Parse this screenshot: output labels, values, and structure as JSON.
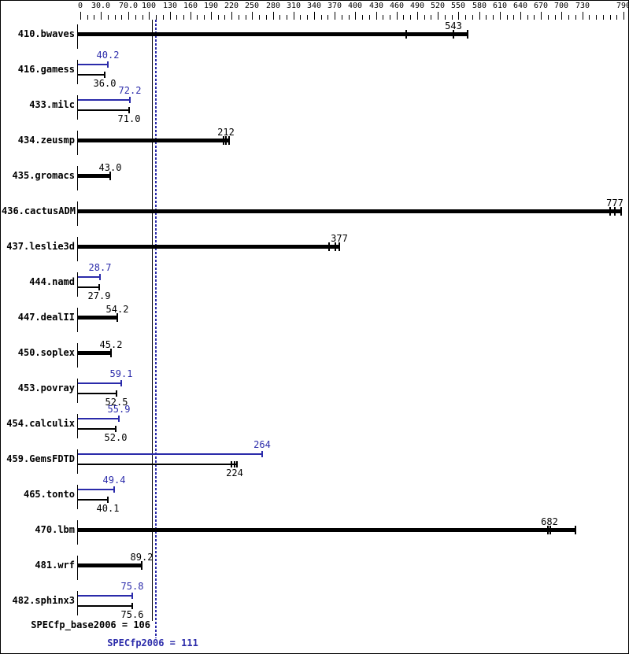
{
  "chart_data": {
    "type": "bar",
    "orientation": "horizontal",
    "axis": {
      "min": 0,
      "max": 790,
      "minor_tick_step": 10,
      "tick_labels": [
        {
          "value": 0,
          "text": "0"
        },
        {
          "value": 30,
          "text": "30.0"
        },
        {
          "value": 70,
          "text": "70.0"
        },
        {
          "value": 100,
          "text": "100"
        },
        {
          "value": 130,
          "text": "130"
        },
        {
          "value": 160,
          "text": "160"
        },
        {
          "value": 190,
          "text": "190"
        },
        {
          "value": 220,
          "text": "220"
        },
        {
          "value": 250,
          "text": "250"
        },
        {
          "value": 280,
          "text": "280"
        },
        {
          "value": 310,
          "text": "310"
        },
        {
          "value": 340,
          "text": "340"
        },
        {
          "value": 370,
          "text": "370"
        },
        {
          "value": 400,
          "text": "400"
        },
        {
          "value": 430,
          "text": "430"
        },
        {
          "value": 460,
          "text": "460"
        },
        {
          "value": 490,
          "text": "490"
        },
        {
          "value": 520,
          "text": "520"
        },
        {
          "value": 550,
          "text": "550"
        },
        {
          "value": 580,
          "text": "580"
        },
        {
          "value": 610,
          "text": "610"
        },
        {
          "value": 640,
          "text": "640"
        },
        {
          "value": 670,
          "text": "670"
        },
        {
          "value": 700,
          "text": "700"
        },
        {
          "value": 730,
          "text": "730"
        },
        {
          "value": 790,
          "text": "790"
        }
      ]
    },
    "series_colors": {
      "base": "#000000",
      "peak": "#2b2baa"
    },
    "rows": [
      {
        "name": "410.bwaves",
        "bars": [
          {
            "series": "base",
            "label": "543",
            "value": 543,
            "run_ticks": [
              474,
              543
            ],
            "bar_end": 563
          }
        ]
      },
      {
        "name": "416.gamess",
        "bars": [
          {
            "series": "peak",
            "label": "40.2",
            "value": 40.2
          },
          {
            "series": "base",
            "label": "36.0",
            "value": 36.0
          }
        ]
      },
      {
        "name": "433.milc",
        "bars": [
          {
            "series": "peak",
            "label": "72.2",
            "value": 72.2
          },
          {
            "series": "base",
            "label": "71.0",
            "value": 71.0
          }
        ]
      },
      {
        "name": "434.zeusmp",
        "bars": [
          {
            "series": "base",
            "label": "212",
            "value": 212,
            "run_ticks": [
              208,
              212
            ],
            "bar_end": 216
          }
        ]
      },
      {
        "name": "435.gromacs",
        "bars": [
          {
            "series": "base",
            "label": "43.0",
            "value": 43.0
          }
        ]
      },
      {
        "name": "436.cactusADM",
        "bars": [
          {
            "series": "base",
            "label": "777",
            "value": 777,
            "run_ticks": [
              770,
              777
            ],
            "bar_end": 787
          }
        ]
      },
      {
        "name": "437.leslie3d",
        "bars": [
          {
            "series": "base",
            "label": "377",
            "value": 377,
            "run_ticks": [
              362,
              371
            ],
            "bar_end": 377
          }
        ]
      },
      {
        "name": "444.namd",
        "bars": [
          {
            "series": "peak",
            "label": "28.7",
            "value": 28.7
          },
          {
            "series": "base",
            "label": "27.9",
            "value": 27.9
          }
        ]
      },
      {
        "name": "447.dealII",
        "bars": [
          {
            "series": "base",
            "label": "54.2",
            "value": 54.2
          }
        ]
      },
      {
        "name": "450.soplex",
        "bars": [
          {
            "series": "base",
            "label": "45.2",
            "value": 45.2
          }
        ]
      },
      {
        "name": "453.povray",
        "bars": [
          {
            "series": "peak",
            "label": "59.1",
            "value": 59.1
          },
          {
            "series": "base",
            "label": "52.5",
            "value": 52.5
          }
        ]
      },
      {
        "name": "454.calculix",
        "bars": [
          {
            "series": "peak",
            "label": "55.9",
            "value": 55.9
          },
          {
            "series": "base",
            "label": "52.0",
            "value": 52.0
          }
        ]
      },
      {
        "name": "459.GemsFDTD",
        "bars": [
          {
            "series": "peak",
            "label": "264",
            "value": 264
          },
          {
            "series": "base",
            "label": "224",
            "value": 224,
            "run_ticks": [
              220,
              224
            ],
            "bar_end": 228
          }
        ]
      },
      {
        "name": "465.tonto",
        "bars": [
          {
            "series": "peak",
            "label": "49.4",
            "value": 49.4
          },
          {
            "series": "base",
            "label": "40.1",
            "value": 40.1
          }
        ]
      },
      {
        "name": "470.lbm",
        "bars": [
          {
            "series": "base",
            "label": "682",
            "value": 682,
            "run_ticks": [
              680,
              684
            ],
            "bar_end": 720
          }
        ]
      },
      {
        "name": "481.wrf",
        "bars": [
          {
            "series": "base",
            "label": "89.2",
            "value": 89.2
          }
        ]
      },
      {
        "name": "482.sphinx3",
        "bars": [
          {
            "series": "peak",
            "label": "75.8",
            "value": 75.8
          },
          {
            "series": "base",
            "label": "75.6",
            "value": 75.6
          }
        ]
      }
    ],
    "summary": {
      "base": {
        "text": "SPECfp_base2006 = 106",
        "value": 106
      },
      "peak": {
        "text": "SPECfp2006 = 111",
        "value": 111
      }
    }
  }
}
